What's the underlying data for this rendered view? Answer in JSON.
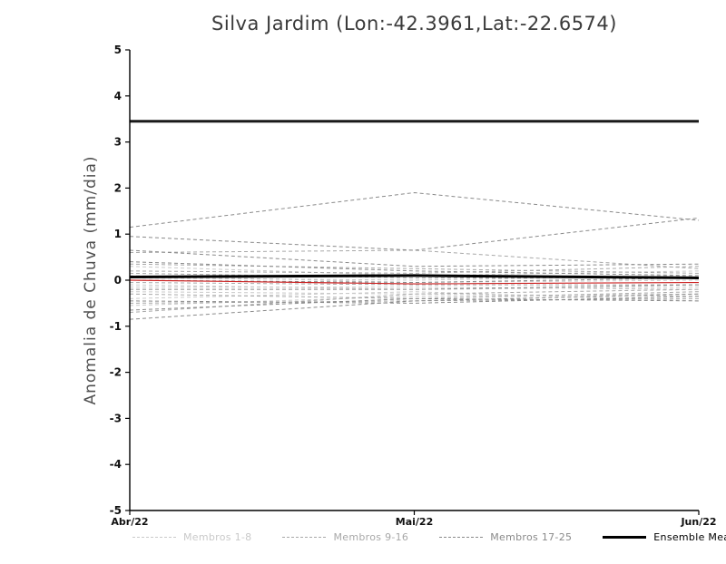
{
  "page": {
    "background": "#ffffff"
  },
  "chart_data": {
    "type": "line",
    "title": "Silva Jardim (Lon:-42.3961,Lat:-22.6574)",
    "ylabel": "Anomalia de Chuva (mm/dia)",
    "xlabel": "",
    "x_tick_labels": [
      "Abr/22",
      "Mai/22",
      "Jun/22"
    ],
    "ylim": [
      -5,
      5
    ],
    "ytick_step": 1,
    "grid": false,
    "legend_position": "bottom",
    "groups": [
      {
        "label": "Membros 1-8",
        "color": "#c9c9c9",
        "line_style": "dashed",
        "members": [
          [
            0.3,
            0.1,
            0.2
          ],
          [
            0.1,
            -0.05,
            0.0
          ],
          [
            -0.1,
            -0.2,
            -0.15
          ],
          [
            -0.25,
            -0.3,
            -0.35
          ],
          [
            -0.4,
            -0.25,
            -0.45
          ],
          [
            -0.55,
            -0.35,
            -0.3
          ],
          [
            0.05,
            0.0,
            0.1
          ],
          [
            -0.15,
            -0.15,
            -0.2
          ]
        ]
      },
      {
        "label": "Membros 9-16",
        "color": "#a8a8a8",
        "line_style": "dashed",
        "members": [
          [
            0.6,
            0.65,
            0.25
          ],
          [
            0.35,
            0.25,
            0.15
          ],
          [
            0.15,
            0.05,
            0.05
          ],
          [
            -0.05,
            -0.1,
            -0.1
          ],
          [
            -0.3,
            -0.4,
            -0.25
          ],
          [
            -0.5,
            -0.45,
            -0.4
          ],
          [
            -0.7,
            -0.3,
            -0.2
          ],
          [
            0.2,
            0.15,
            0.3
          ]
        ]
      },
      {
        "label": "Membros 17-25",
        "color": "#8a8a8a",
        "line_style": "dashed",
        "members": [
          [
            1.15,
            1.9,
            1.3
          ],
          [
            0.95,
            0.65,
            1.35
          ],
          [
            0.65,
            0.3,
            0.35
          ],
          [
            0.4,
            0.2,
            0.1
          ],
          [
            0.0,
            -0.05,
            0.05
          ],
          [
            -0.2,
            -0.2,
            -0.1
          ],
          [
            -0.45,
            -0.5,
            -0.35
          ],
          [
            -0.65,
            -0.4,
            -0.45
          ],
          [
            -0.85,
            -0.45,
            -0.3
          ]
        ]
      }
    ],
    "ensemble_mean": {
      "label": "Ensemble Mean",
      "color": "#000000",
      "line_style": "solid",
      "line_width": 3,
      "values": [
        0.07,
        0.1,
        0.05
      ]
    },
    "red_line": {
      "color": "#cc2222",
      "line_style": "solid",
      "line_width": 1.2,
      "values": [
        0.0,
        -0.08,
        -0.05
      ]
    },
    "horizontal_line": {
      "color": "#1a1a1a",
      "line_width": 3,
      "value": 3.45
    }
  }
}
